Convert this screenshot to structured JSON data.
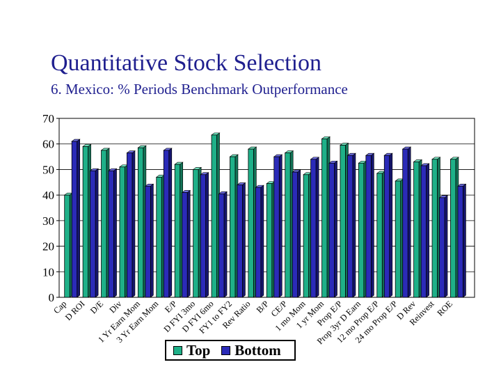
{
  "title": "Quantitative Stock Selection",
  "subtitle": "6. Mexico: % Periods Benchmark Outperformance",
  "chart_data": {
    "type": "bar",
    "title": "6. Mexico: % Periods Benchmark Outperformance",
    "xlabel": "",
    "ylabel": "",
    "ylim": [
      0,
      70
    ],
    "yticks": [
      0,
      10,
      20,
      30,
      40,
      50,
      60,
      70
    ],
    "grid": true,
    "legend_position": "bottom",
    "categories": [
      "Cap",
      "D ROI",
      "D/E",
      "Div",
      "1 Yr Earn Mom",
      "3 Yr Earn Mom",
      "E/P",
      "D FYI 3mo",
      "D FYI 6mo",
      "FY1 to FY2",
      "Rev Ratio",
      "B/P",
      "CE/P",
      "1 mo Mom",
      "1 yr Mom",
      "Prop E/P",
      "Prop 3yr D Earn",
      "12 mo Prop E/P",
      "24 mo Prop E/P",
      "D Rev",
      "Reinvest",
      "ROE"
    ],
    "series": [
      {
        "name": "Top",
        "color": "#1fb088",
        "values": [
          40,
          59,
          57.5,
          51,
          58.5,
          47,
          52,
          50,
          63.5,
          55,
          58,
          44.5,
          56.5,
          48,
          62,
          59.5,
          52.5,
          48.5,
          45.5,
          53,
          54,
          54
        ]
      },
      {
        "name": "Bottom",
        "color": "#2b2bb8",
        "values": [
          61,
          49.5,
          49.5,
          56.5,
          43.5,
          57.5,
          41,
          48,
          40.5,
          44,
          43,
          55,
          49,
          54,
          52.5,
          55.5,
          55.5,
          55.5,
          58,
          51.5,
          39,
          43.5
        ]
      }
    ]
  }
}
